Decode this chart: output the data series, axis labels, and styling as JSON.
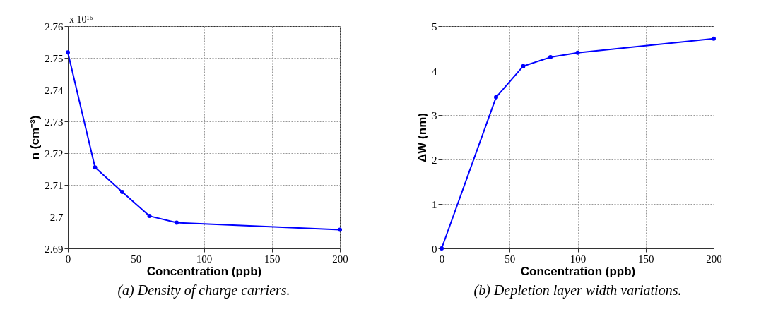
{
  "chart_data": [
    {
      "type": "line",
      "title": "(a) Density of charge carriers.",
      "xlabel": "Concentration (ppb)",
      "ylabel": "n (cm⁻³)",
      "annotations": [
        "x 10¹⁶"
      ],
      "x": [
        0,
        20,
        40,
        60,
        80,
        200
      ],
      "series": [
        {
          "color": "#0000ff",
          "values": [
            2.7517,
            2.7155,
            2.7078,
            2.7002,
            2.6981,
            2.6959
          ]
        }
      ],
      "xlim": [
        0,
        200
      ],
      "xticks": [
        0,
        50,
        100,
        150,
        200
      ],
      "ylim": [
        2.69,
        2.76
      ],
      "yticks": [
        2.69,
        2.7,
        2.71,
        2.72,
        2.73,
        2.74,
        2.75,
        2.76
      ],
      "grid": true,
      "marker": "circle",
      "line_style": "solid"
    },
    {
      "type": "line",
      "title": "(b) Depletion layer width variations.",
      "xlabel": "Concentration (ppb)",
      "ylabel": "ΔW (nm)",
      "x": [
        0,
        40,
        60,
        80,
        100,
        200
      ],
      "series": [
        {
          "color": "#0000ff",
          "values": [
            0,
            3.4,
            4.1,
            4.3,
            4.4,
            4.72
          ]
        }
      ],
      "xlim": [
        0,
        200
      ],
      "xticks": [
        0,
        50,
        100,
        150,
        200
      ],
      "ylim": [
        0,
        5
      ],
      "yticks": [
        0,
        1,
        2,
        3,
        4,
        5
      ],
      "grid": true,
      "marker": "circle",
      "line_style": "solid"
    }
  ]
}
